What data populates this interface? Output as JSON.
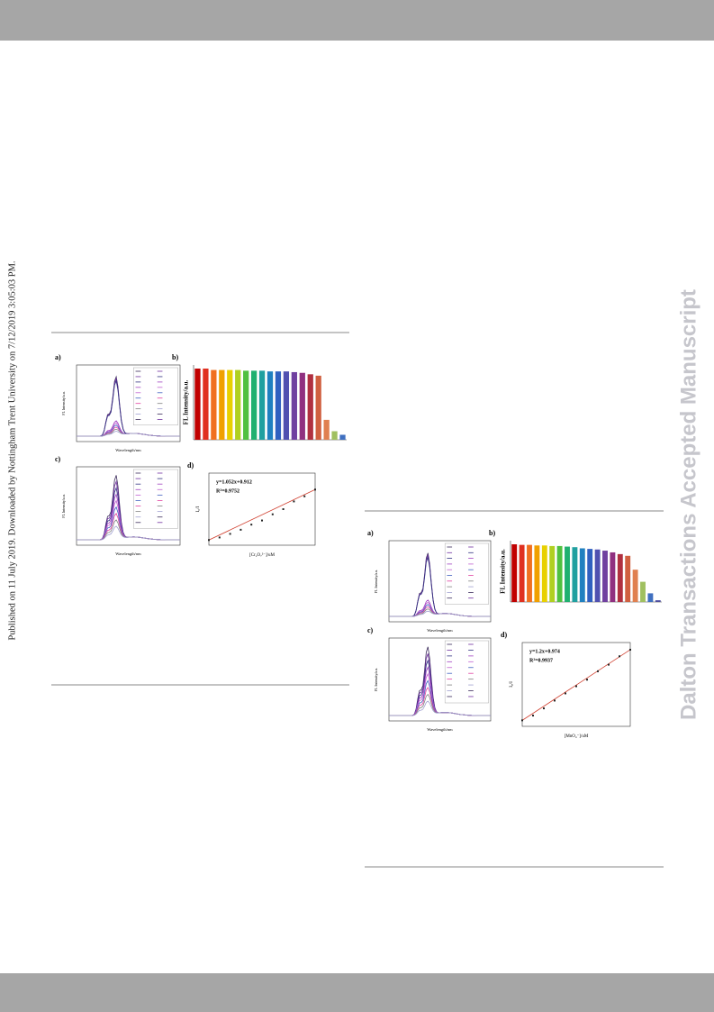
{
  "side_note": "Published on 11 July 2019. Downloaded by Nottingham Trent University on 7/12/2019 3:05:03 PM.",
  "watermark": "Dalton Transactions Accepted Manuscript",
  "figures": [
    {
      "a": {
        "label": "a)",
        "y_label": "FL Intensity/a.u.",
        "x_label": "Wavelength/nm"
      },
      "b": {
        "label": "b)",
        "y_label": "FL Intensity/a.u.",
        "bars": [
          100,
          100,
          98,
          98,
          98,
          98,
          97,
          97,
          97,
          96,
          96,
          96,
          95,
          94,
          92,
          90,
          28,
          12,
          7
        ]
      },
      "c": {
        "label": "c)",
        "y_label": "FL Intensity/a.u.",
        "x_label": "Wavelength/nm"
      },
      "d": {
        "label": "d)",
        "equation": "y=1.052x+0.912",
        "r2": "R²=0.9752",
        "y_label": "I₀/I",
        "x_label": "[Cr₂O₇²⁻]/uM",
        "points": {
          "x": [
            0,
            0.1,
            0.2,
            0.3,
            0.4,
            0.5,
            0.6,
            0.7,
            0.8,
            0.9,
            1.0
          ],
          "y": [
            1.0,
            1.05,
            1.12,
            1.2,
            1.3,
            1.38,
            1.5,
            1.6,
            1.75,
            1.85,
            1.98
          ]
        }
      }
    },
    {
      "a": {
        "label": "a)",
        "y_label": "FL Intensity/a.u.",
        "x_label": "Wavelength/nm"
      },
      "b": {
        "label": "b)",
        "y_label": "FL Intensity/a.u.",
        "bars": [
          100,
          99,
          99,
          98,
          98,
          97,
          97,
          96,
          95,
          93,
          92,
          91,
          89,
          86,
          83,
          80,
          56,
          35,
          15,
          3
        ]
      },
      "c": {
        "label": "c)",
        "y_label": "FL Intensity/a.u.",
        "x_label": "Wavelength/nm"
      },
      "d": {
        "label": "d)",
        "equation": "y=1.2x+0.974",
        "r2": "R²=0.9937",
        "y_label": "I₀/I",
        "x_label": "[MnO₄⁻]/uM",
        "points": {
          "x": [
            0,
            0.1,
            0.2,
            0.3,
            0.4,
            0.5,
            0.6,
            0.7,
            0.8,
            0.9,
            1.0
          ],
          "y": [
            1.0,
            1.08,
            1.2,
            1.33,
            1.45,
            1.57,
            1.68,
            1.82,
            1.93,
            2.07,
            2.18
          ]
        }
      }
    }
  ]
}
